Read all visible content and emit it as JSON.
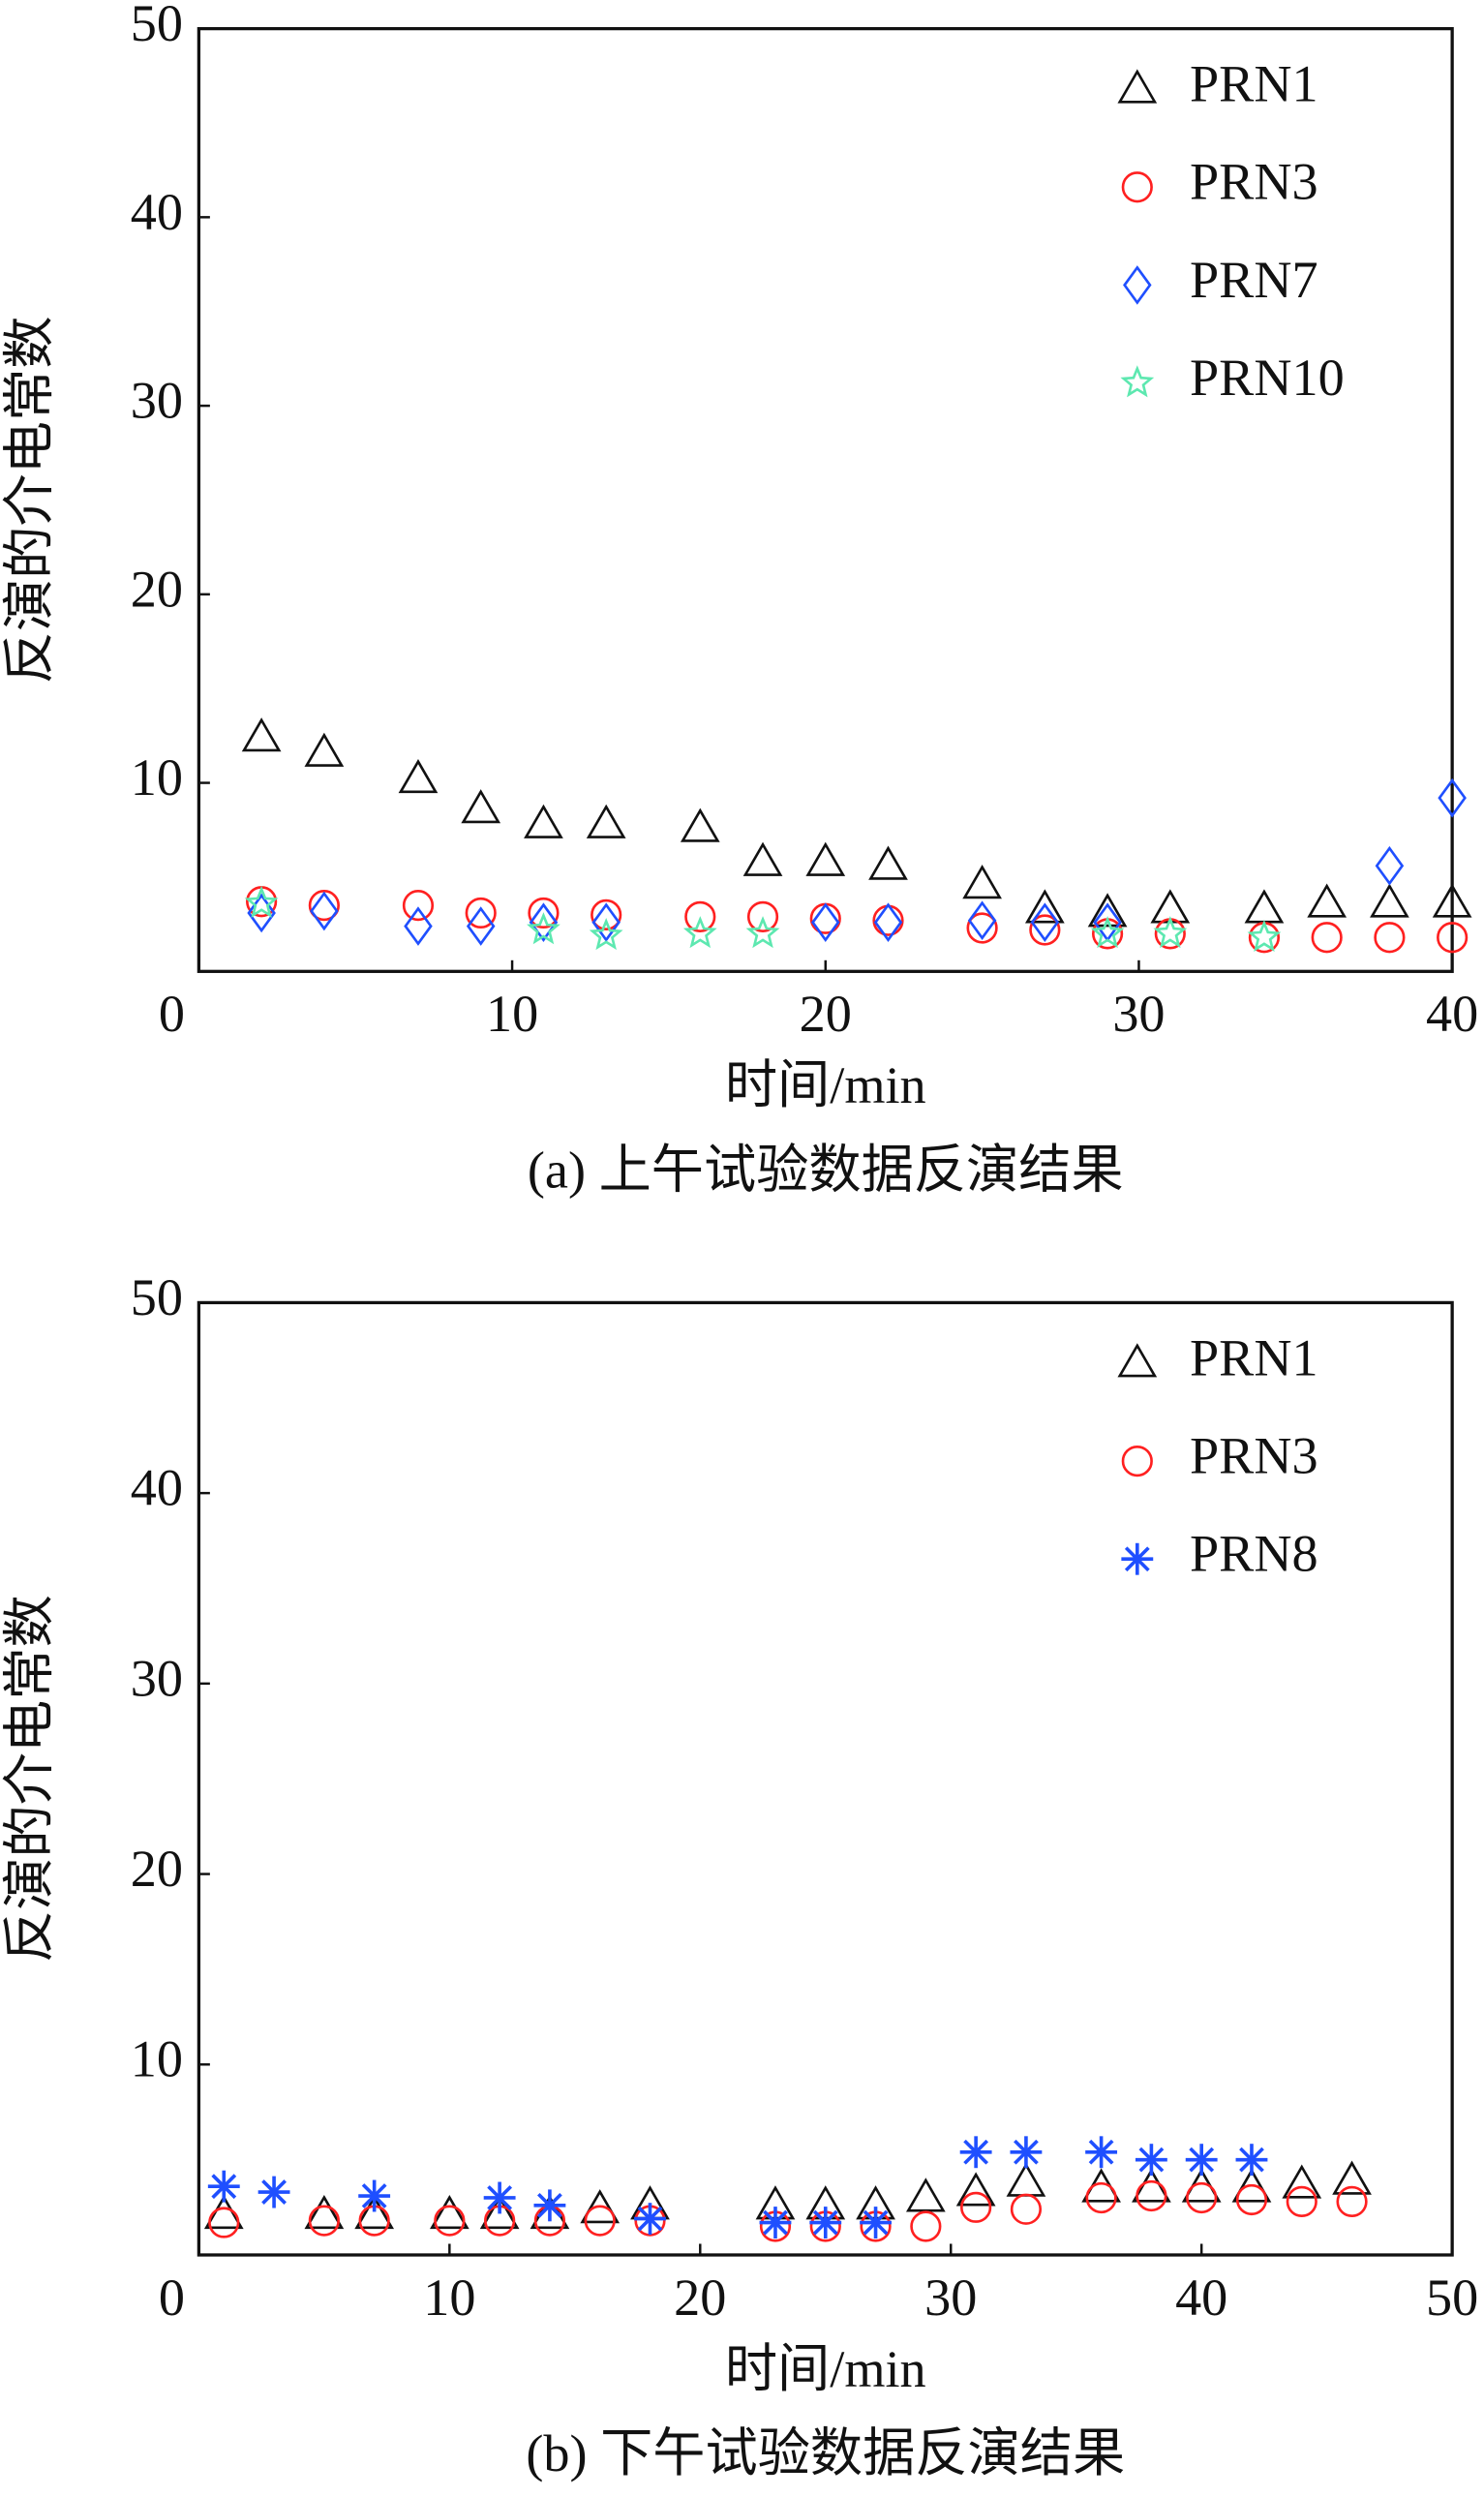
{
  "chart_data": [
    {
      "type": "scatter",
      "xlabel": "时间/min",
      "ylabel": "反演的介电常数",
      "caption": "(a) 上午试验数据反演结果",
      "xlim": [
        0,
        40
      ],
      "xticks": [
        0,
        10,
        20,
        30,
        40
      ],
      "ylim": [
        0,
        50
      ],
      "yticks": [
        10,
        20,
        30,
        40,
        50
      ],
      "series": [
        {
          "name": "PRN1",
          "color": "#111111",
          "marker": "triangle",
          "x": [
            2,
            4,
            7,
            9,
            11,
            13,
            16,
            18,
            20,
            22,
            25,
            27,
            29,
            31,
            34,
            36,
            38,
            40
          ],
          "values": [
            12.4,
            11.6,
            10.2,
            8.6,
            7.8,
            7.8,
            7.6,
            5.8,
            5.8,
            5.6,
            4.6,
            3.3,
            3.1,
            3.3,
            3.3,
            3.6,
            3.6,
            3.6
          ]
        },
        {
          "name": "PRN3",
          "color": "#ff2020",
          "marker": "circle",
          "x": [
            2,
            4,
            7,
            9,
            11,
            13,
            16,
            18,
            20,
            22,
            25,
            27,
            29,
            31,
            34,
            36,
            38,
            40
          ],
          "values": [
            3.7,
            3.5,
            3.5,
            3.1,
            3.1,
            3.0,
            2.9,
            2.9,
            2.8,
            2.7,
            2.3,
            2.2,
            2.0,
            2.0,
            1.8,
            1.8,
            1.8,
            1.8
          ]
        },
        {
          "name": "PRN7",
          "color": "#1f4fff",
          "marker": "diamond",
          "x": [
            2,
            4,
            7,
            9,
            11,
            13,
            20,
            22,
            25,
            27,
            29,
            38,
            40
          ],
          "values": [
            3.1,
            3.2,
            2.4,
            2.4,
            2.6,
            2.6,
            2.6,
            2.6,
            2.7,
            2.6,
            2.6,
            5.6,
            9.2
          ]
        },
        {
          "name": "PRN10",
          "color": "#5de8b0",
          "marker": "star",
          "x": [
            2,
            11,
            13,
            16,
            18,
            29,
            31,
            34
          ],
          "values": [
            3.6,
            2.2,
            1.9,
            2.0,
            2.0,
            2.0,
            2.0,
            1.8
          ]
        }
      ]
    },
    {
      "type": "scatter",
      "xlabel": "时间/min",
      "ylabel": "反演的介电常数",
      "caption": "(b) 下午试验数据反演结果",
      "xlim": [
        0,
        50
      ],
      "xticks": [
        0,
        10,
        20,
        30,
        40,
        50
      ],
      "ylim": [
        0,
        50
      ],
      "yticks": [
        10,
        20,
        30,
        40,
        50
      ],
      "series": [
        {
          "name": "PRN1",
          "color": "#111111",
          "marker": "triangle",
          "x": [
            1,
            5,
            7,
            10,
            12,
            14,
            16,
            18,
            23,
            25,
            27,
            29,
            31,
            33,
            36,
            38,
            40,
            42,
            44,
            46
          ],
          "values": [
            2.1,
            2.1,
            2.1,
            2.1,
            2.1,
            2.1,
            2.4,
            2.6,
            2.6,
            2.6,
            2.6,
            3.0,
            3.3,
            3.8,
            3.5,
            3.5,
            3.5,
            3.5,
            3.7,
            3.9
          ]
        },
        {
          "name": "PRN3",
          "color": "#ff2020",
          "marker": "circle",
          "x": [
            1,
            5,
            7,
            10,
            12,
            14,
            16,
            18,
            23,
            25,
            27,
            29,
            31,
            33,
            36,
            38,
            40,
            42,
            44,
            46
          ],
          "values": [
            1.7,
            1.8,
            1.8,
            1.8,
            1.8,
            1.8,
            1.8,
            1.8,
            1.5,
            1.5,
            1.5,
            1.5,
            2.5,
            2.4,
            3.0,
            3.1,
            3.0,
            2.9,
            2.8,
            2.8
          ]
        },
        {
          "name": "PRN8",
          "color": "#1f4fff",
          "marker": "asterisk",
          "x": [
            1,
            3,
            7,
            12,
            14,
            18,
            23,
            25,
            27,
            31,
            33,
            36,
            38,
            40,
            42
          ],
          "values": [
            3.6,
            3.3,
            3.1,
            3.0,
            2.6,
            1.9,
            1.7,
            1.7,
            1.7,
            5.4,
            5.4,
            5.4,
            5.0,
            5.0,
            5.0
          ]
        }
      ]
    }
  ]
}
